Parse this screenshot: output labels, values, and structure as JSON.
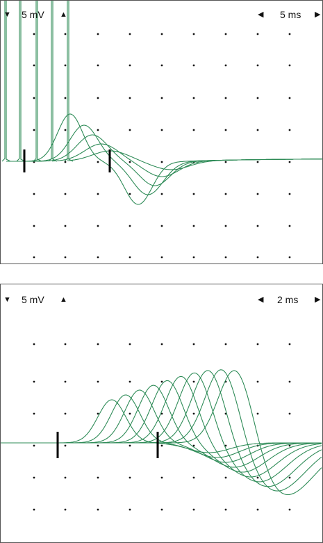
{
  "top_panel": {
    "voltage_scale": "5 mV",
    "time_scale": "5 ms",
    "arrows": {
      "down": "▼",
      "up": "▲",
      "left": "◀",
      "right": "▶"
    },
    "trace_color": "#2e8b57",
    "marker_color": "#000000"
  },
  "bottom_panel": {
    "voltage_scale": "5 mV",
    "time_scale": "2 ms",
    "arrows": {
      "down": "▼",
      "up": "▲",
      "left": "◀",
      "right": "▶"
    },
    "trace_color": "#2e8b57",
    "marker_color": "#000000"
  }
}
